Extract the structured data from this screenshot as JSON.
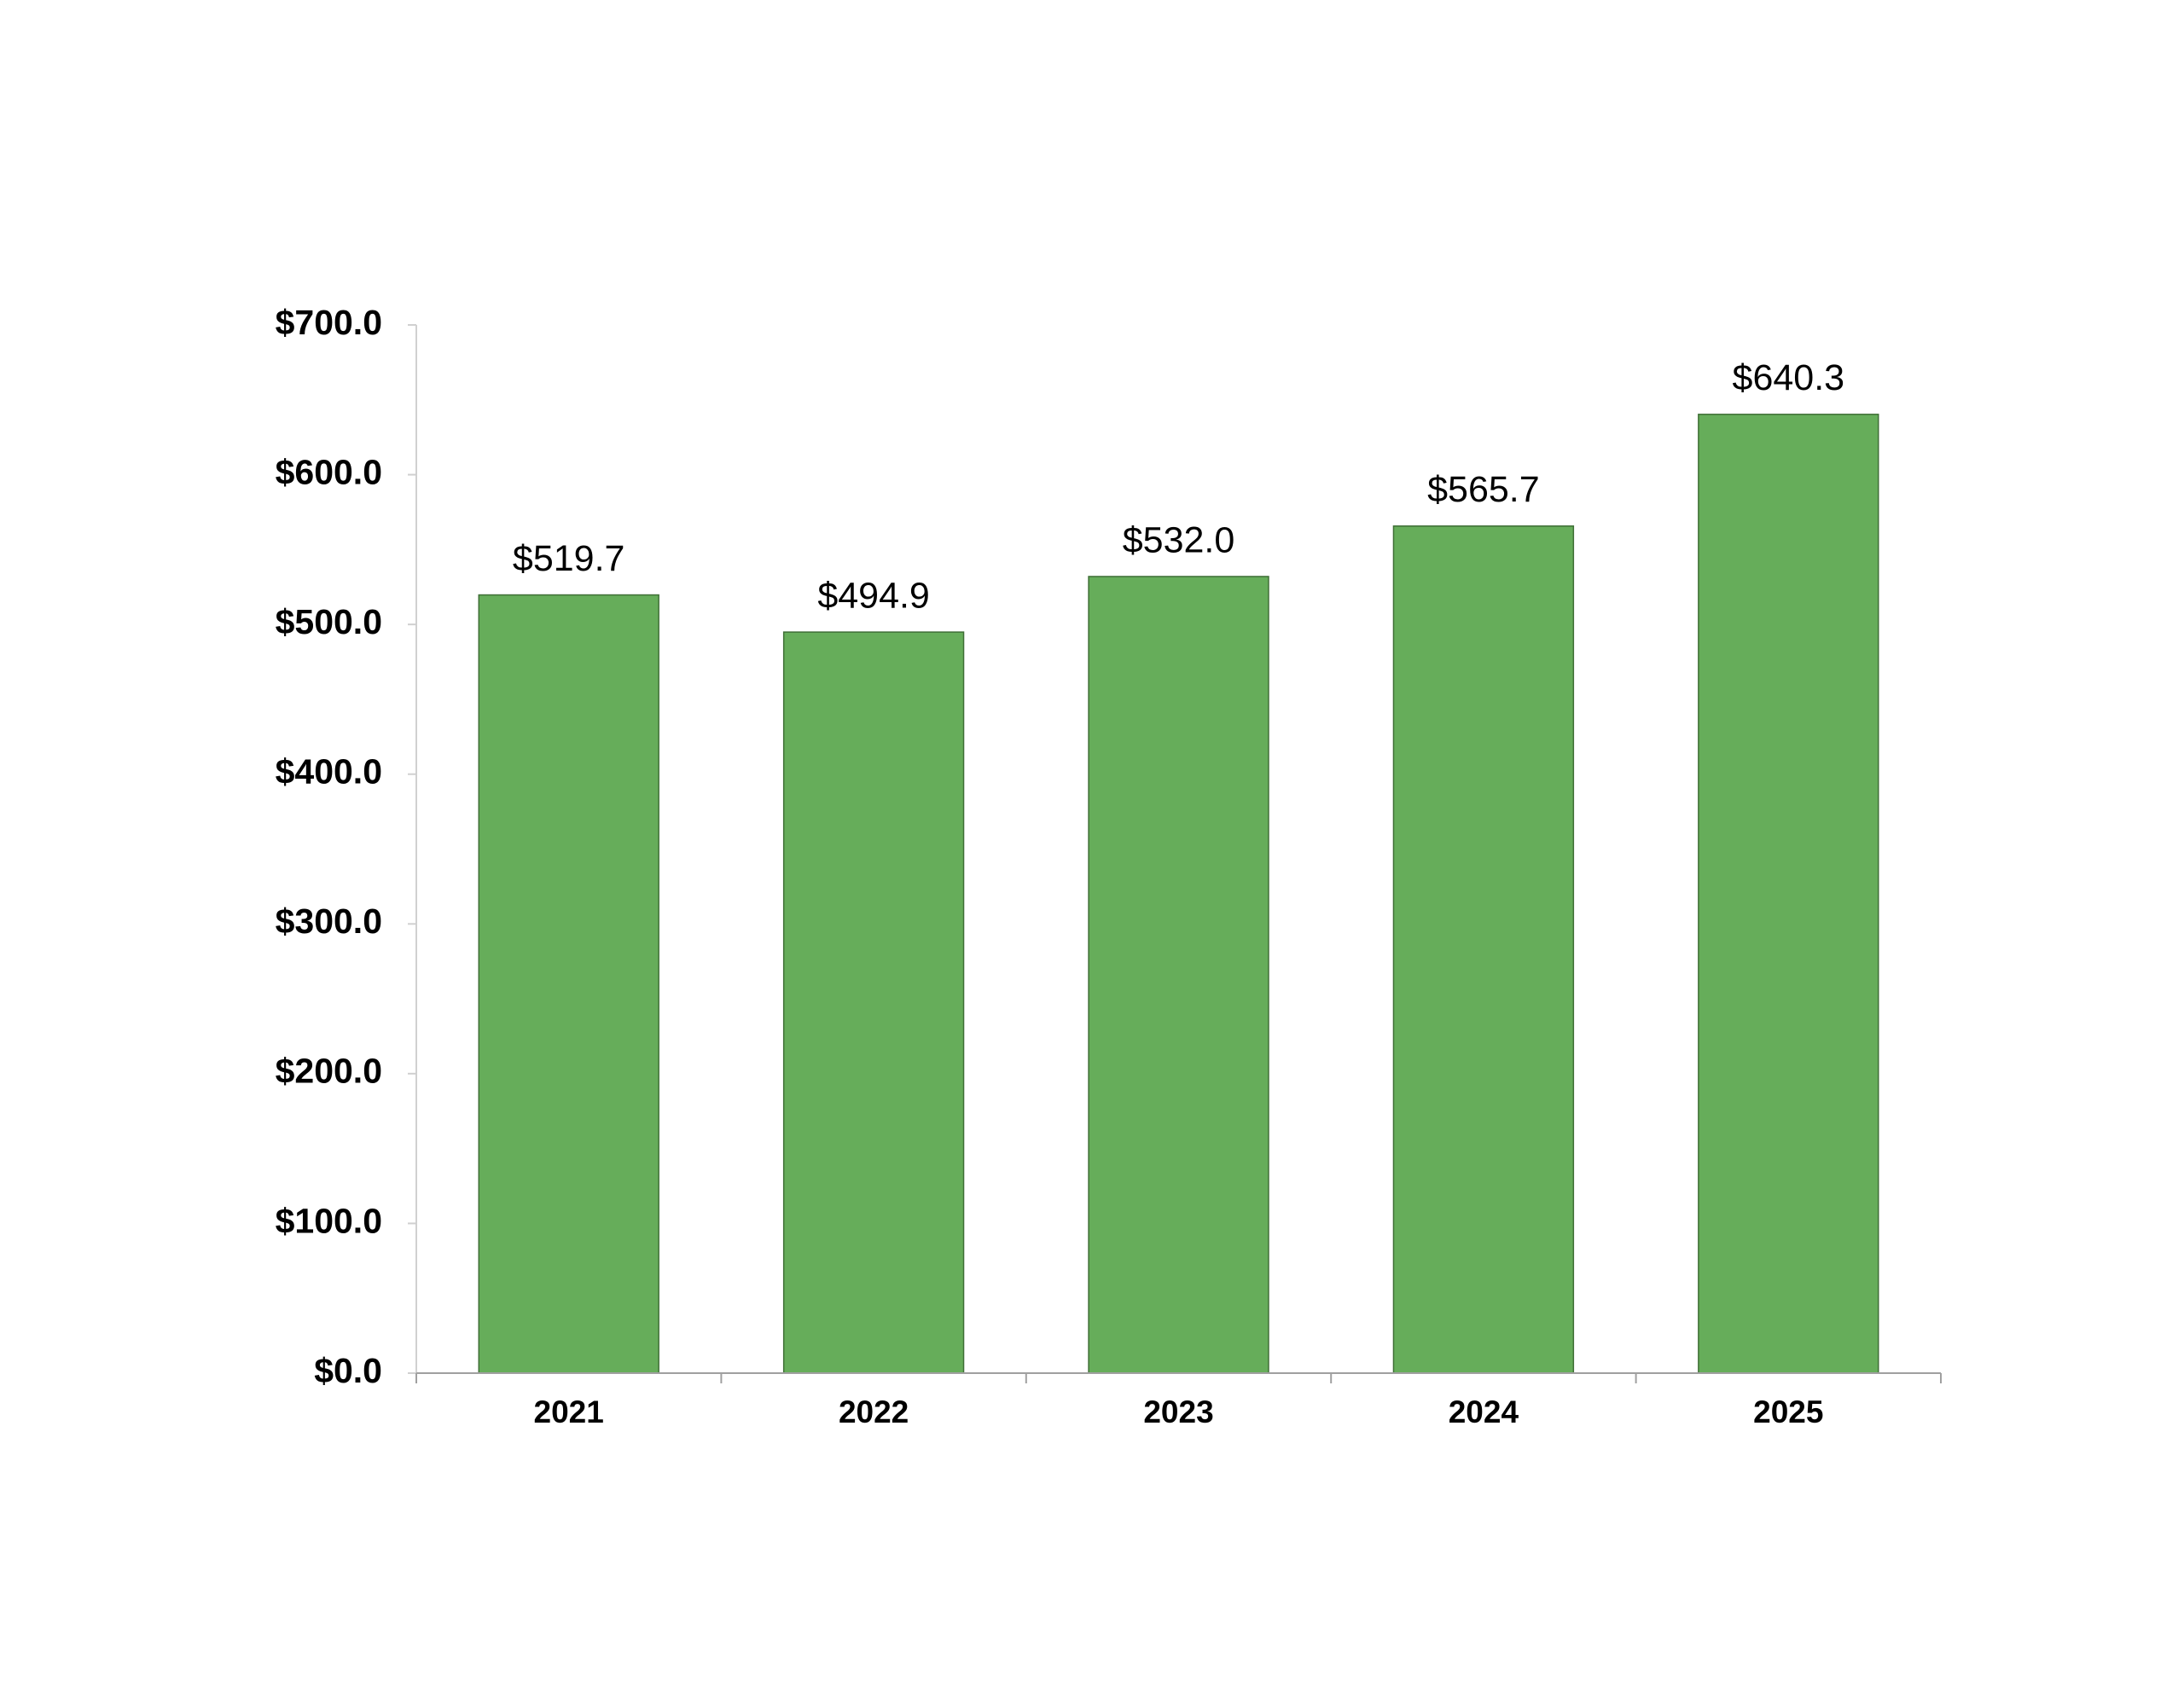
{
  "chart_data": {
    "type": "bar",
    "categories": [
      "2021",
      "2022",
      "2023",
      "2024",
      "2025"
    ],
    "values": [
      519.7,
      494.9,
      532.0,
      565.7,
      640.3
    ],
    "value_labels": [
      "$519.7",
      "$494.9",
      "$532.0",
      "$565.7",
      "$640.3"
    ],
    "color": "#66ad5a",
    "ylim": [
      0,
      700
    ],
    "yticks": [
      {
        "value": 0,
        "label": "$0.0"
      },
      {
        "value": 100,
        "label": "$100.0"
      },
      {
        "value": 200,
        "label": "$200.0"
      },
      {
        "value": 300,
        "label": "$300.0"
      },
      {
        "value": 400,
        "label": "$400.0"
      },
      {
        "value": 500,
        "label": "$500.0"
      },
      {
        "value": 600,
        "label": "$600.0"
      },
      {
        "value": 700,
        "label": "$700.0"
      }
    ],
    "grid": false
  }
}
